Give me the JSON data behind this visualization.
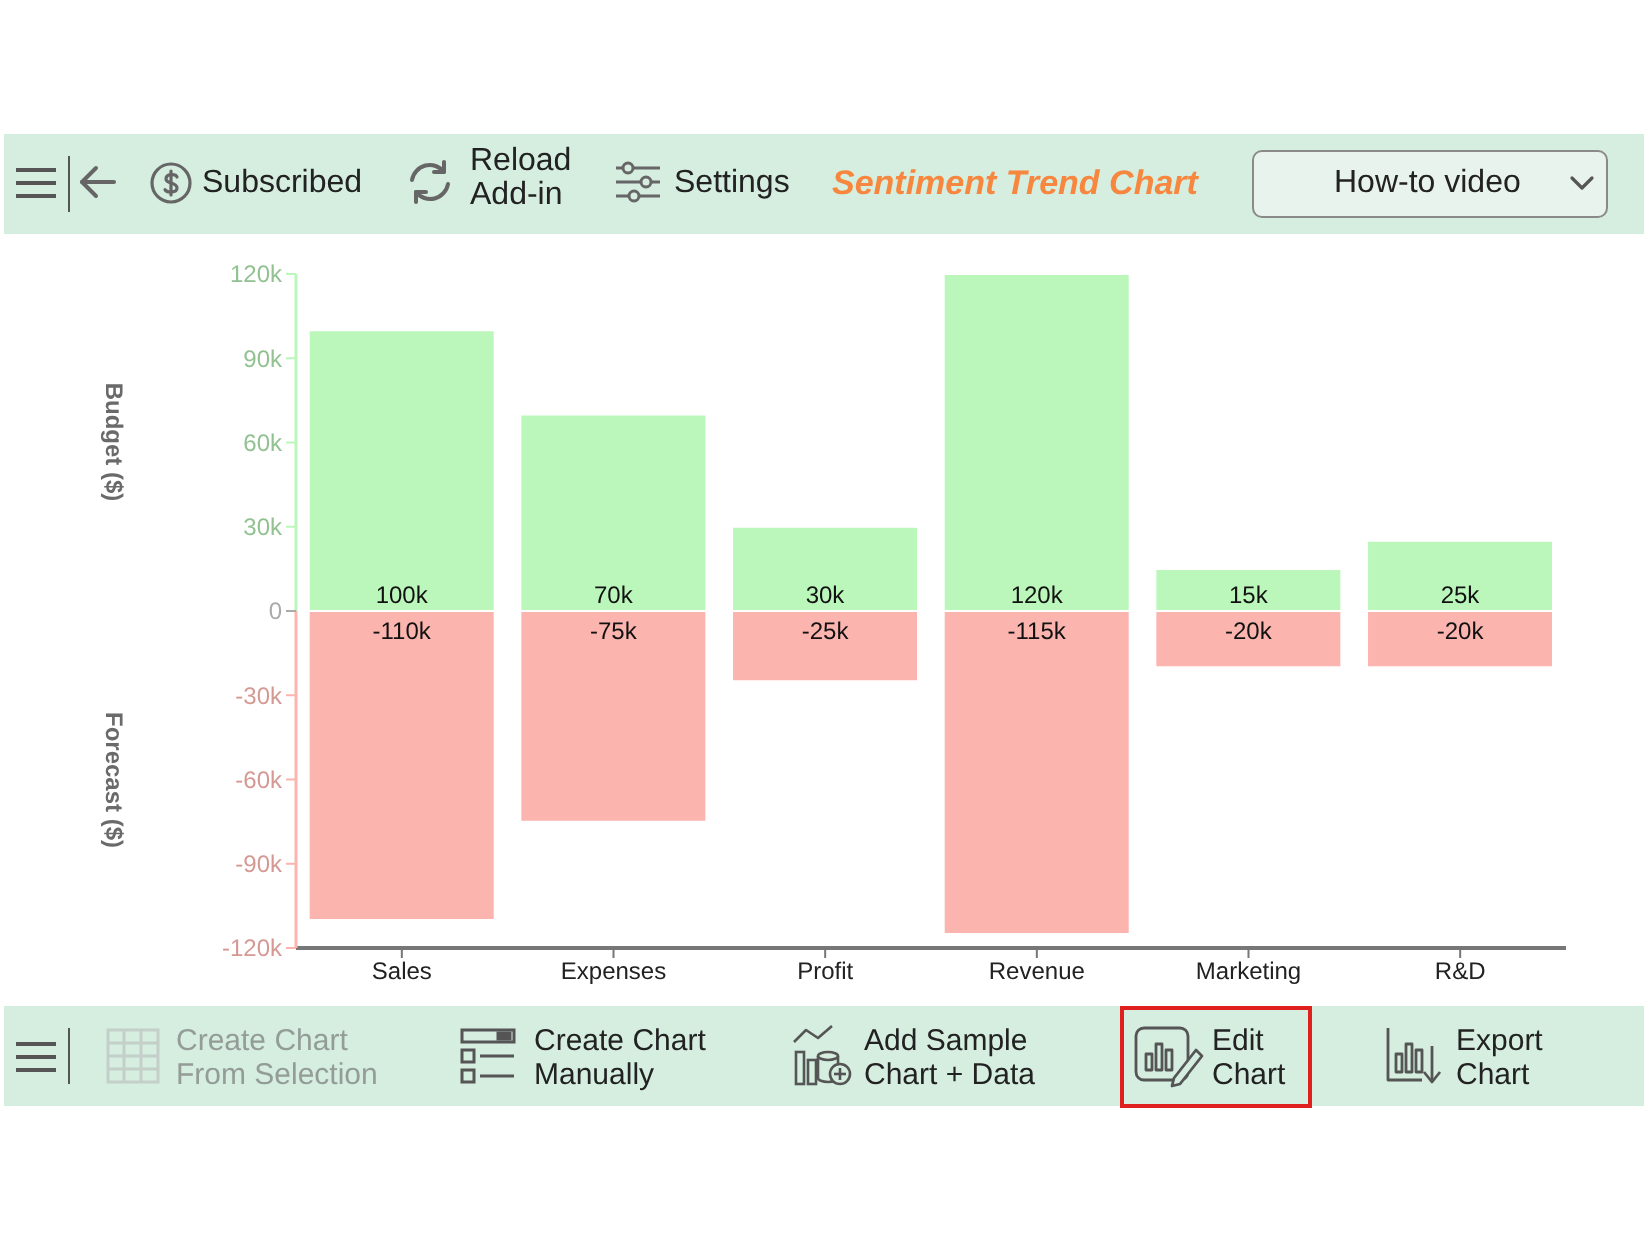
{
  "chart_data": {
    "type": "bar",
    "title": "Sentiment Trend Chart",
    "ylabel": "Budget ($)",
    "categories": [
      "Sales",
      "Expenses",
      "Profit",
      "Revenue",
      "Marketing",
      "R&D"
    ],
    "stacked": true,
    "series": [
      {
        "color": "#bbf7bb",
        "values": [
          100000,
          70000,
          30000,
          120000,
          15000,
          25000
        ],
        "value_labels": [
          "100k",
          "70k",
          "30k",
          "120k",
          "15k",
          "25k"
        ]
      },
      {
        "color": "#fbb4ae",
        "values": [
          -110000,
          -75000,
          -25000,
          -115000,
          -20000,
          -20000
        ],
        "value_labels": [
          "-110k",
          "-75k",
          "-25k",
          "-115k",
          "-20k",
          "-20k"
        ]
      }
    ],
    "ylim": [
      -120000,
      120000
    ],
    "yticks": [
      {
        "value": -120000,
        "label": "-120k"
      },
      {
        "value": -90000,
        "label": "-90k"
      },
      {
        "value": -60000,
        "label": "-60k"
      },
      {
        "value": -30000,
        "label": "-30k"
      },
      0,
      {
        "value": 30000,
        "label": "30k"
      },
      {
        "value": 60000,
        "label": "60k"
      },
      {
        "value": 90000,
        "label": "90k"
      },
      {
        "value": 120000,
        "label": "120k"
      }
    ],
    "annotations": [
      "Subscribed",
      "Reload\nAdd-in",
      "Settings",
      "How-to video",
      "Create Chart\nFrom Selection",
      "Create Chart\nManually",
      "Add Sample\nChart + Data",
      "Edit\nChart",
      "Export\nChart",
      "Forecast ($)"
    ]
  }
}
